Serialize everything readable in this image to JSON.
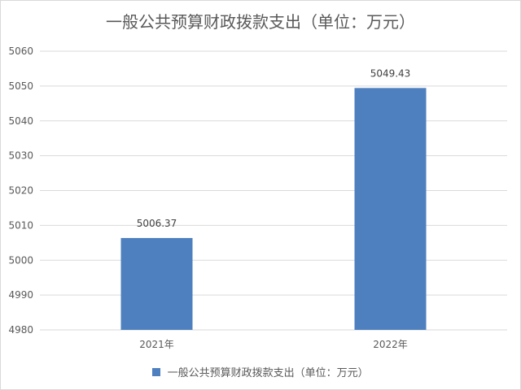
{
  "chart_data": {
    "type": "bar",
    "title": "一般公共预算财政拨款支出（单位：万元）",
    "categories": [
      "2021年",
      "2022年"
    ],
    "series": [
      {
        "name": "一般公共预算财政拨款支出（单位：万元）",
        "values": [
          5006.37,
          5049.43
        ],
        "value_labels": [
          "5006.37",
          "5049.43"
        ],
        "color": "#4e7fbf"
      }
    ],
    "ylim": [
      4980,
      5060
    ],
    "yticks": [
      "4980",
      "4990",
      "5000",
      "5010",
      "5020",
      "5030",
      "5040",
      "5050",
      "5060"
    ],
    "xlabel": "",
    "ylabel": "",
    "grid": true,
    "legend_position": "bottom"
  }
}
